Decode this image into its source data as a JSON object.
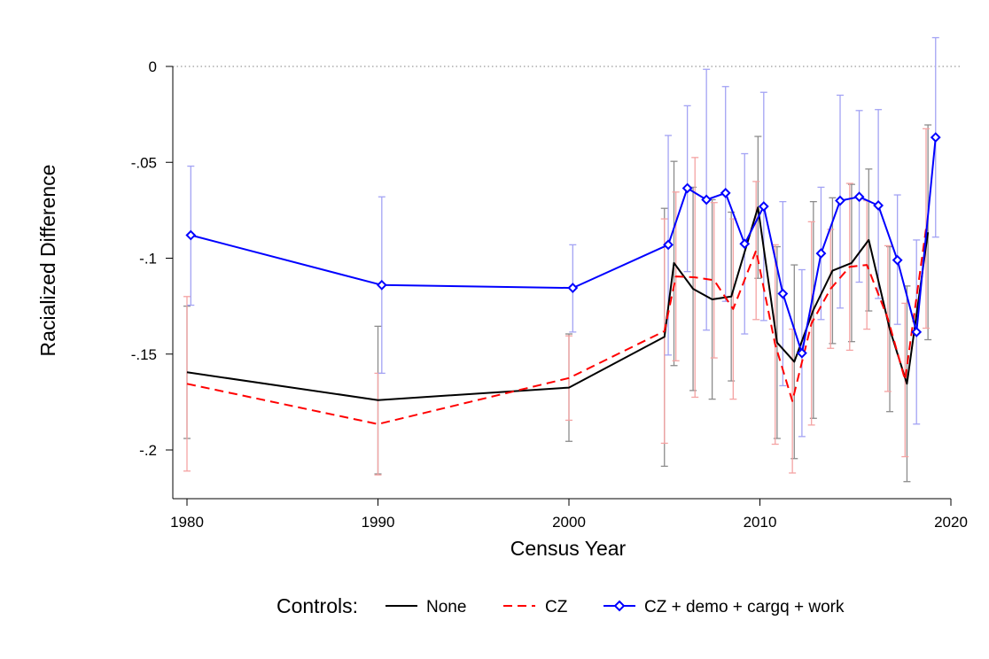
{
  "chart_data": {
    "type": "line",
    "xlabel": "Census Year",
    "ylabel": "Racialized Difference",
    "xlim": [
      1980,
      2020
    ],
    "ylim": [
      -0.2,
      0
    ],
    "x_ticks": [
      1980,
      1990,
      2000,
      2010,
      2020
    ],
    "x_tick_labels": [
      "1980",
      "1990",
      "2000",
      "2010",
      "2020"
    ],
    "y_ticks": [
      0,
      -0.05,
      -0.1,
      -0.15,
      -0.2
    ],
    "y_tick_labels": [
      "0",
      "-.05",
      "-.1",
      "-.15",
      "-.2"
    ],
    "reference_line": {
      "y": 0,
      "style": "dotted"
    },
    "grid": false,
    "legend": {
      "title": "Controls:",
      "placement": "bottom",
      "entries": [
        "None",
        "CZ",
        "CZ + demo + cargq + work"
      ]
    },
    "series": [
      {
        "name": "None",
        "color": "#000000",
        "line": "solid",
        "ci_color": "#8c8c8c",
        "points": [
          {
            "x": 1980.0,
            "y": -0.1595,
            "lo": -0.194,
            "hi": -0.125
          },
          {
            "x": 1990.0,
            "y": -0.174,
            "lo": -0.2125,
            "hi": -0.1355
          },
          {
            "x": 2000.0,
            "y": -0.1675,
            "lo": -0.1955,
            "hi": -0.1395
          },
          {
            "x": 2005.0,
            "y": -0.141,
            "lo": -0.2085,
            "hi": -0.074
          },
          {
            "x": 2005.5,
            "y": -0.1025,
            "lo": -0.156,
            "hi": -0.0495
          },
          {
            "x": 2006.5,
            "y": -0.116,
            "lo": -0.169,
            "hi": -0.063
          },
          {
            "x": 2007.5,
            "y": -0.1215,
            "lo": -0.1735,
            "hi": -0.0695
          },
          {
            "x": 2008.5,
            "y": -0.12,
            "lo": -0.164,
            "hi": -0.076
          },
          {
            "x": 2009.9,
            "y": -0.0735,
            "lo": -0.1105,
            "hi": -0.0365
          },
          {
            "x": 2010.9,
            "y": -0.144,
            "lo": -0.194,
            "hi": -0.094
          },
          {
            "x": 2011.8,
            "y": -0.154,
            "lo": -0.2045,
            "hi": -0.1035
          },
          {
            "x": 2012.8,
            "y": -0.127,
            "lo": -0.1835,
            "hi": -0.0705
          },
          {
            "x": 2013.8,
            "y": -0.1065,
            "lo": -0.1445,
            "hi": -0.0685
          },
          {
            "x": 2014.8,
            "y": -0.1025,
            "lo": -0.1435,
            "hi": -0.0615
          },
          {
            "x": 2015.7,
            "y": -0.0905,
            "lo": -0.1275,
            "hi": -0.0535
          },
          {
            "x": 2016.8,
            "y": -0.137,
            "lo": -0.18,
            "hi": -0.094
          },
          {
            "x": 2017.7,
            "y": -0.1655,
            "lo": -0.2165,
            "hi": -0.1145
          },
          {
            "x": 2018.8,
            "y": -0.0865,
            "lo": -0.1425,
            "hi": -0.0305
          }
        ]
      },
      {
        "name": "CZ",
        "color": "#ff0000",
        "line": "dashed",
        "ci_color": "#f4a3a3",
        "points": [
          {
            "x": 1980.0,
            "y": -0.1655,
            "lo": -0.211,
            "hi": -0.12
          },
          {
            "x": 1990.0,
            "y": -0.1865,
            "lo": -0.213,
            "hi": -0.16
          },
          {
            "x": 2000.0,
            "y": -0.1625,
            "lo": -0.1845,
            "hi": -0.1405
          },
          {
            "x": 2005.0,
            "y": -0.138,
            "lo": -0.1965,
            "hi": -0.0795
          },
          {
            "x": 2005.6,
            "y": -0.1095,
            "lo": -0.1535,
            "hi": -0.0655
          },
          {
            "x": 2006.6,
            "y": -0.11,
            "lo": -0.1725,
            "hi": -0.0475
          },
          {
            "x": 2007.6,
            "y": -0.1115,
            "lo": -0.152,
            "hi": -0.071
          },
          {
            "x": 2008.6,
            "y": -0.1265,
            "lo": -0.1735,
            "hi": -0.0795
          },
          {
            "x": 2009.8,
            "y": -0.096,
            "lo": -0.132,
            "hi": -0.06
          },
          {
            "x": 2010.8,
            "y": -0.145,
            "lo": -0.197,
            "hi": -0.093
          },
          {
            "x": 2011.7,
            "y": -0.1745,
            "lo": -0.212,
            "hi": -0.137
          },
          {
            "x": 2012.7,
            "y": -0.134,
            "lo": -0.187,
            "hi": -0.081
          },
          {
            "x": 2013.7,
            "y": -0.116,
            "lo": -0.147,
            "hi": -0.085
          },
          {
            "x": 2014.7,
            "y": -0.1045,
            "lo": -0.148,
            "hi": -0.061
          },
          {
            "x": 2015.6,
            "y": -0.1035,
            "lo": -0.137,
            "hi": -0.07
          },
          {
            "x": 2016.7,
            "y": -0.1315,
            "lo": -0.1695,
            "hi": -0.0935
          },
          {
            "x": 2017.6,
            "y": -0.1635,
            "lo": -0.2035,
            "hi": -0.1235
          },
          {
            "x": 2018.7,
            "y": -0.0845,
            "lo": -0.1365,
            "hi": -0.0325
          }
        ]
      },
      {
        "name": "CZ + demo + cargq + work",
        "color": "#0000ff",
        "line": "solid",
        "marker": "diamond",
        "ci_color": "#a3a3f4",
        "points": [
          {
            "x": 1980.2,
            "y": -0.088,
            "lo": -0.1245,
            "hi": -0.052
          },
          {
            "x": 1990.2,
            "y": -0.114,
            "lo": -0.16,
            "hi": -0.068
          },
          {
            "x": 2000.2,
            "y": -0.1155,
            "lo": -0.1385,
            "hi": -0.093
          },
          {
            "x": 2005.2,
            "y": -0.093,
            "lo": -0.1505,
            "hi": -0.036
          },
          {
            "x": 2006.2,
            "y": -0.0635,
            "lo": -0.107,
            "hi": -0.0205
          },
          {
            "x": 2007.2,
            "y": -0.0695,
            "lo": -0.1375,
            "hi": -0.0015
          },
          {
            "x": 2008.2,
            "y": -0.066,
            "lo": -0.1225,
            "hi": -0.0105
          },
          {
            "x": 2009.2,
            "y": -0.0925,
            "lo": -0.1395,
            "hi": -0.0455
          },
          {
            "x": 2010.2,
            "y": -0.073,
            "lo": -0.1325,
            "hi": -0.0135
          },
          {
            "x": 2011.2,
            "y": -0.1185,
            "lo": -0.1665,
            "hi": -0.0705
          },
          {
            "x": 2012.2,
            "y": -0.1495,
            "lo": -0.193,
            "hi": -0.106
          },
          {
            "x": 2013.2,
            "y": -0.0975,
            "lo": -0.132,
            "hi": -0.063
          },
          {
            "x": 2014.2,
            "y": -0.07,
            "lo": -0.126,
            "hi": -0.015
          },
          {
            "x": 2015.2,
            "y": -0.068,
            "lo": -0.1125,
            "hi": -0.023
          },
          {
            "x": 2016.2,
            "y": -0.0725,
            "lo": -0.121,
            "hi": -0.0225
          },
          {
            "x": 2017.2,
            "y": -0.101,
            "lo": -0.1345,
            "hi": -0.067
          },
          {
            "x": 2018.2,
            "y": -0.1385,
            "lo": -0.1865,
            "hi": -0.0905
          },
          {
            "x": 2019.2,
            "y": -0.037,
            "lo": -0.089,
            "hi": 0.015
          }
        ]
      }
    ]
  }
}
